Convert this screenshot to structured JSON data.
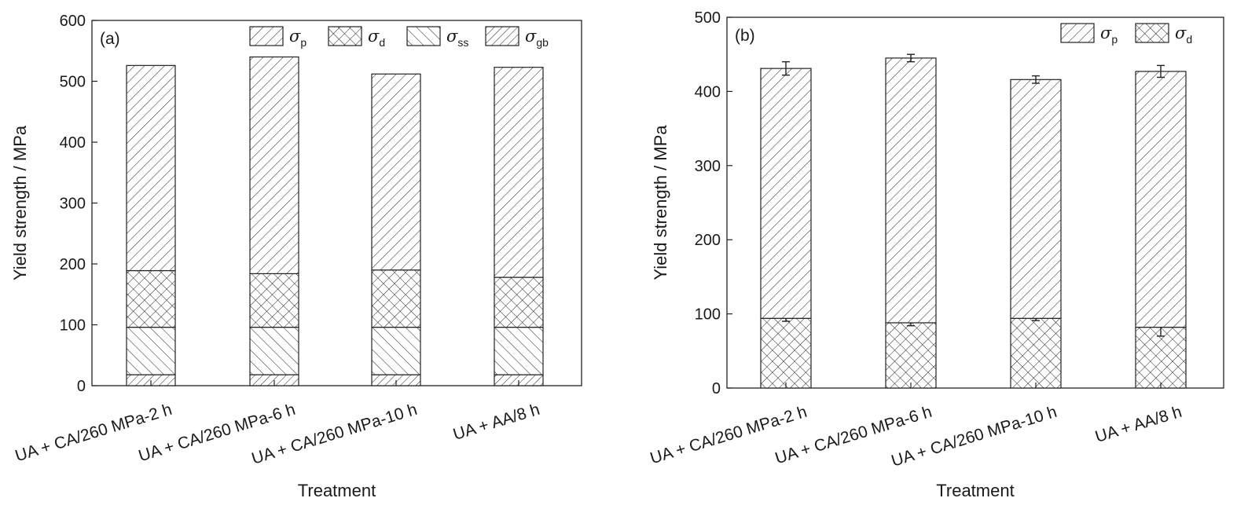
{
  "chart_data": [
    {
      "panel": "(a)",
      "type": "bar",
      "stacked": true,
      "categories": [
        "UA + CA/260 MPa-2 h",
        "UA + CA/260 MPa-6 h",
        "UA + CA/260 MPa-10 h",
        "UA + AA/8 h"
      ],
      "xlabel": "Treatment",
      "ylabel": "Yield strength / MPa",
      "ylim": [
        0,
        600
      ],
      "yticks": [
        0,
        100,
        200,
        300,
        400,
        500,
        600
      ],
      "legend_position": "top-right",
      "series": [
        {
          "name": "σgb",
          "symbol": "σ",
          "sub": "gb",
          "pattern": "diag-fine",
          "values": [
            18,
            18,
            18,
            18
          ]
        },
        {
          "name": "σss",
          "symbol": "σ",
          "sub": "ss",
          "pattern": "back-diag",
          "values": [
            78,
            78,
            78,
            78
          ]
        },
        {
          "name": "σd",
          "symbol": "σ",
          "sub": "d",
          "pattern": "cross",
          "values": [
            93,
            88,
            94,
            82
          ]
        },
        {
          "name": "σp",
          "symbol": "σ",
          "sub": "p",
          "pattern": "diag",
          "values": [
            337,
            356,
            322,
            345
          ]
        }
      ],
      "legend_order": [
        "σp",
        "σd",
        "σss",
        "σgb"
      ]
    },
    {
      "panel": "(b)",
      "type": "bar",
      "stacked": true,
      "categories": [
        "UA + CA/260 MPa-2 h",
        "UA + CA/260 MPa-6 h",
        "UA + CA/260 MPa-10 h",
        "UA + AA/8 h"
      ],
      "xlabel": "Treatment",
      "ylabel": "Yield strength / MPa",
      "ylim": [
        0,
        500
      ],
      "yticks": [
        0,
        100,
        200,
        300,
        400,
        500
      ],
      "legend_position": "top-right",
      "series": [
        {
          "name": "σd",
          "symbol": "σ",
          "sub": "d",
          "pattern": "cross",
          "values": [
            94,
            88,
            94,
            82
          ],
          "error": [
            4,
            4,
            3,
            12
          ]
        },
        {
          "name": "σp",
          "symbol": "σ",
          "sub": "p",
          "pattern": "diag",
          "values": [
            337,
            357,
            322,
            345
          ],
          "error": [
            9,
            5,
            5,
            8
          ]
        }
      ],
      "legend_order": [
        "σp",
        "σd"
      ]
    }
  ]
}
